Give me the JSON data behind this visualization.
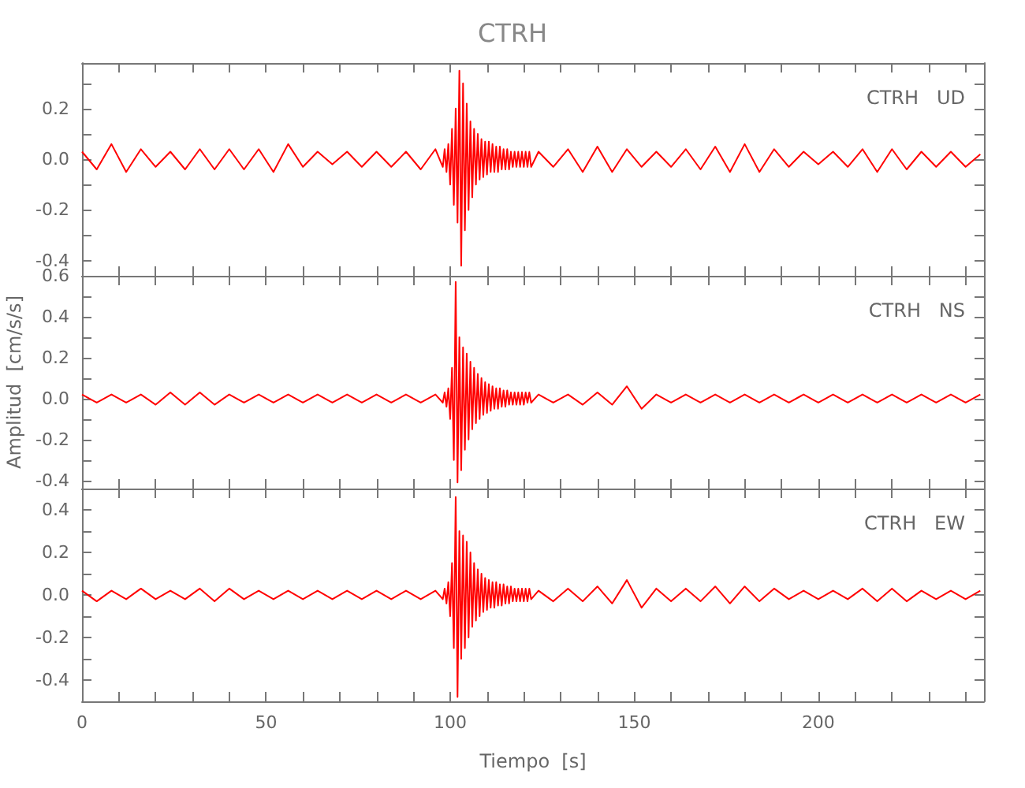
{
  "chart_data": [
    {
      "type": "line",
      "title": "CTRH",
      "annotations": [
        "CTRH   UD"
      ],
      "tick_labels": "y",
      "xlim": [
        0,
        245
      ],
      "xticks": [
        0,
        {
          "value": 10,
          "label": null
        },
        {
          "value": 20,
          "label": null
        },
        {
          "value": 30,
          "label": null
        },
        {
          "value": 40,
          "label": null
        },
        50,
        {
          "value": 60,
          "label": null
        },
        {
          "value": 70,
          "label": null
        },
        {
          "value": 80,
          "label": null
        },
        {
          "value": 90,
          "label": null
        },
        100,
        {
          "value": 110,
          "label": null
        },
        {
          "value": 120,
          "label": null
        },
        {
          "value": 130,
          "label": null
        },
        {
          "value": 140,
          "label": null
        },
        150,
        {
          "value": 160,
          "label": null
        },
        {
          "value": 170,
          "label": null
        },
        {
          "value": 180,
          "label": null
        },
        {
          "value": 190,
          "label": null
        },
        200,
        {
          "value": 210,
          "label": null
        },
        {
          "value": 220,
          "label": null
        },
        {
          "value": 230,
          "label": null
        },
        {
          "value": 240,
          "label": null
        }
      ],
      "ylim": [
        -0.46,
        0.38
      ],
      "yticks": [
        -0.4,
        {
          "value": -0.3,
          "label": null
        },
        -0.2,
        {
          "value": -0.1,
          "label": null
        },
        {
          "value": 0,
          "label": "0.0"
        },
        {
          "value": 0.1,
          "label": null
        },
        0.2,
        {
          "value": 0.3,
          "label": null
        }
      ],
      "x": [
        0,
        4,
        8,
        12,
        16,
        20,
        24,
        28,
        32,
        36,
        40,
        44,
        48,
        52,
        56,
        60,
        64,
        68,
        72,
        76,
        80,
        84,
        88,
        92,
        96,
        98,
        98.5,
        99,
        99.5,
        100,
        100.5,
        101,
        101.5,
        102,
        102.5,
        103,
        103.5,
        104,
        104.5,
        105,
        105.5,
        106,
        106.5,
        107,
        107.5,
        108,
        108.5,
        109,
        109.5,
        110,
        110.5,
        111,
        111.5,
        112,
        112.5,
        113,
        113.5,
        114,
        114.5,
        115,
        115.5,
        116,
        116.5,
        117,
        117.5,
        118,
        118.5,
        119,
        119.5,
        120,
        120.5,
        121,
        121.5,
        122,
        124,
        128,
        132,
        136,
        140,
        144,
        148,
        152,
        156,
        160,
        164,
        168,
        172,
        176,
        180,
        184,
        188,
        192,
        196,
        200,
        204,
        208,
        212,
        216,
        220,
        224,
        228,
        232,
        236,
        240,
        244
      ],
      "series": [
        {
          "color": "#ff0000",
          "values": [
            0.03,
            -0.04,
            0.06,
            -0.05,
            0.04,
            -0.03,
            0.03,
            -0.04,
            0.04,
            -0.04,
            0.04,
            -0.04,
            0.04,
            -0.05,
            0.06,
            -0.03,
            0.03,
            -0.02,
            0.03,
            -0.03,
            0.03,
            -0.03,
            0.03,
            -0.04,
            0.04,
            -0.03,
            0.04,
            -0.05,
            0.06,
            -0.1,
            0.12,
            -0.18,
            0.2,
            -0.25,
            0.35,
            -0.42,
            0.3,
            -0.28,
            0.22,
            -0.2,
            0.15,
            -0.15,
            0.12,
            -0.1,
            0.1,
            -0.08,
            0.08,
            -0.07,
            0.07,
            -0.06,
            0.07,
            -0.05,
            0.06,
            -0.05,
            0.05,
            -0.05,
            0.05,
            -0.04,
            0.04,
            -0.04,
            0.04,
            -0.04,
            0.03,
            -0.03,
            0.03,
            -0.03,
            0.03,
            -0.03,
            0.03,
            -0.03,
            0.03,
            -0.03,
            0.03,
            -0.03,
            0.03,
            -0.03,
            0.04,
            -0.05,
            0.05,
            -0.05,
            0.04,
            -0.03,
            0.03,
            -0.03,
            0.04,
            -0.04,
            0.05,
            -0.05,
            0.06,
            -0.05,
            0.04,
            -0.03,
            0.03,
            -0.02,
            0.03,
            -0.03,
            0.04,
            -0.05,
            0.04,
            -0.04,
            0.03,
            -0.03,
            0.03,
            -0.03,
            0.02
          ]
        }
      ]
    },
    {
      "type": "line",
      "ylabel": "Amplitud  [cm/s/s]",
      "annotations": [
        "CTRH   NS"
      ],
      "tick_labels": "y",
      "xlim": [
        0,
        245
      ],
      "xticks": [
        0,
        {
          "value": 10,
          "label": null
        },
        {
          "value": 20,
          "label": null
        },
        {
          "value": 30,
          "label": null
        },
        {
          "value": 40,
          "label": null
        },
        50,
        {
          "value": 60,
          "label": null
        },
        {
          "value": 70,
          "label": null
        },
        {
          "value": 80,
          "label": null
        },
        {
          "value": 90,
          "label": null
        },
        100,
        {
          "value": 110,
          "label": null
        },
        {
          "value": 120,
          "label": null
        },
        {
          "value": 130,
          "label": null
        },
        {
          "value": 140,
          "label": null
        },
        150,
        {
          "value": 160,
          "label": null
        },
        {
          "value": 170,
          "label": null
        },
        {
          "value": 180,
          "label": null
        },
        {
          "value": 190,
          "label": null
        },
        200,
        {
          "value": 210,
          "label": null
        },
        {
          "value": 220,
          "label": null
        },
        {
          "value": 230,
          "label": null
        },
        {
          "value": 240,
          "label": null
        }
      ],
      "ylim": [
        -0.44,
        0.6
      ],
      "yticks": [
        -0.4,
        {
          "value": -0.3,
          "label": null
        },
        -0.2,
        {
          "value": -0.1,
          "label": null
        },
        {
          "value": 0,
          "label": "0.0"
        },
        {
          "value": 0.1,
          "label": null
        },
        0.2,
        {
          "value": 0.3,
          "label": null
        },
        0.4,
        {
          "value": 0.5,
          "label": null
        },
        0.6
      ],
      "x": [
        0,
        4,
        8,
        12,
        16,
        20,
        24,
        28,
        32,
        36,
        40,
        44,
        48,
        52,
        56,
        60,
        64,
        68,
        72,
        76,
        80,
        84,
        88,
        92,
        96,
        98,
        98.5,
        99,
        99.5,
        100,
        100.5,
        101,
        101.5,
        102,
        102.5,
        103,
        103.5,
        104,
        104.5,
        105,
        105.5,
        106,
        106.5,
        107,
        107.5,
        108,
        108.5,
        109,
        109.5,
        110,
        110.5,
        111,
        111.5,
        112,
        112.5,
        113,
        113.5,
        114,
        114.5,
        115,
        115.5,
        116,
        116.5,
        117,
        117.5,
        118,
        118.5,
        119,
        119.5,
        120,
        120.5,
        121,
        121.5,
        122,
        124,
        128,
        132,
        136,
        140,
        144,
        148,
        152,
        156,
        160,
        164,
        168,
        172,
        176,
        180,
        184,
        188,
        192,
        196,
        200,
        204,
        208,
        212,
        216,
        220,
        224,
        228,
        232,
        236,
        240,
        244
      ],
      "series": [
        {
          "color": "#ff0000",
          "values": [
            0.02,
            -0.02,
            0.02,
            -0.02,
            0.02,
            -0.03,
            0.03,
            -0.03,
            0.03,
            -0.03,
            0.02,
            -0.02,
            0.02,
            -0.02,
            0.02,
            -0.02,
            0.02,
            -0.02,
            0.02,
            -0.02,
            0.02,
            -0.02,
            0.02,
            -0.02,
            0.02,
            -0.02,
            0.03,
            -0.04,
            0.05,
            -0.1,
            0.15,
            -0.3,
            0.57,
            -0.41,
            0.3,
            -0.35,
            0.25,
            -0.25,
            0.22,
            -0.2,
            0.18,
            -0.15,
            0.15,
            -0.12,
            0.12,
            -0.1,
            0.1,
            -0.08,
            0.08,
            -0.07,
            0.07,
            -0.06,
            0.06,
            -0.05,
            0.05,
            -0.05,
            0.05,
            -0.04,
            0.04,
            -0.04,
            0.04,
            -0.03,
            0.03,
            -0.03,
            0.03,
            -0.03,
            0.03,
            -0.03,
            0.03,
            -0.03,
            0.03,
            -0.02,
            0.03,
            -0.02,
            0.02,
            -0.02,
            0.02,
            -0.03,
            0.03,
            -0.03,
            0.06,
            -0.05,
            0.02,
            -0.02,
            0.02,
            -0.02,
            0.02,
            -0.02,
            0.02,
            -0.02,
            0.02,
            -0.02,
            0.02,
            -0.02,
            0.02,
            -0.02,
            0.02,
            -0.02,
            0.02,
            -0.02,
            0.02,
            -0.02,
            0.02,
            -0.02,
            0.02
          ]
        }
      ]
    },
    {
      "type": "line",
      "xlabel": "Tiempo  [s]",
      "annotations": [
        "CTRH   EW"
      ],
      "xlim": [
        0,
        245
      ],
      "xticks": [
        0,
        {
          "value": 10,
          "label": null
        },
        {
          "value": 20,
          "label": null
        },
        {
          "value": 30,
          "label": null
        },
        {
          "value": 40,
          "label": null
        },
        50,
        {
          "value": 60,
          "label": null
        },
        {
          "value": 70,
          "label": null
        },
        {
          "value": 80,
          "label": null
        },
        {
          "value": 90,
          "label": null
        },
        100,
        {
          "value": 110,
          "label": null
        },
        {
          "value": 120,
          "label": null
        },
        {
          "value": 130,
          "label": null
        },
        {
          "value": 140,
          "label": null
        },
        150,
        {
          "value": 160,
          "label": null
        },
        {
          "value": 170,
          "label": null
        },
        {
          "value": 180,
          "label": null
        },
        {
          "value": 190,
          "label": null
        },
        200,
        {
          "value": 210,
          "label": null
        },
        {
          "value": 220,
          "label": null
        },
        {
          "value": 230,
          "label": null
        },
        {
          "value": 240,
          "label": null
        }
      ],
      "ylim": [
        -0.5,
        0.5
      ],
      "yticks": [
        -0.4,
        {
          "value": -0.3,
          "label": null
        },
        -0.2,
        {
          "value": -0.1,
          "label": null
        },
        {
          "value": 0,
          "label": "0.0"
        },
        {
          "value": 0.1,
          "label": null
        },
        0.2,
        {
          "value": 0.3,
          "label": null
        },
        0.4
      ],
      "x": [
        0,
        4,
        8,
        12,
        16,
        20,
        24,
        28,
        32,
        36,
        40,
        44,
        48,
        52,
        56,
        60,
        64,
        68,
        72,
        76,
        80,
        84,
        88,
        92,
        96,
        98,
        98.5,
        99,
        99.5,
        100,
        100.5,
        101,
        101.5,
        102,
        102.5,
        103,
        103.5,
        104,
        104.5,
        105,
        105.5,
        106,
        106.5,
        107,
        107.5,
        108,
        108.5,
        109,
        109.5,
        110,
        110.5,
        111,
        111.5,
        112,
        112.5,
        113,
        113.5,
        114,
        114.5,
        115,
        115.5,
        116,
        116.5,
        117,
        117.5,
        118,
        118.5,
        119,
        119.5,
        120,
        120.5,
        121,
        121.5,
        122,
        124,
        128,
        132,
        136,
        140,
        144,
        148,
        152,
        156,
        160,
        164,
        168,
        172,
        176,
        180,
        184,
        188,
        192,
        196,
        200,
        204,
        208,
        212,
        216,
        220,
        224,
        228,
        232,
        236,
        240,
        244
      ],
      "series": [
        {
          "color": "#ff0000",
          "values": [
            0.02,
            -0.03,
            0.02,
            -0.02,
            0.03,
            -0.02,
            0.02,
            -0.02,
            0.03,
            -0.03,
            0.03,
            -0.02,
            0.02,
            -0.02,
            0.02,
            -0.02,
            0.02,
            -0.02,
            0.02,
            -0.02,
            0.02,
            -0.02,
            0.02,
            -0.02,
            0.02,
            -0.02,
            0.03,
            -0.04,
            0.06,
            -0.1,
            0.15,
            -0.25,
            0.46,
            -0.48,
            0.3,
            -0.3,
            0.28,
            -0.25,
            0.25,
            -0.2,
            0.2,
            -0.15,
            0.15,
            -0.12,
            0.12,
            -0.1,
            0.1,
            -0.08,
            0.08,
            -0.07,
            0.07,
            -0.06,
            0.06,
            -0.06,
            0.06,
            -0.05,
            0.05,
            -0.05,
            0.05,
            -0.04,
            0.04,
            -0.04,
            0.04,
            -0.03,
            0.03,
            -0.03,
            0.03,
            -0.03,
            0.03,
            -0.03,
            0.03,
            -0.03,
            0.03,
            -0.02,
            0.02,
            -0.03,
            0.03,
            -0.03,
            0.04,
            -0.04,
            0.07,
            -0.06,
            0.03,
            -0.03,
            0.03,
            -0.03,
            0.04,
            -0.04,
            0.04,
            -0.03,
            0.03,
            -0.02,
            0.02,
            -0.02,
            0.02,
            -0.02,
            0.03,
            -0.03,
            0.03,
            -0.03,
            0.02,
            -0.02,
            0.02,
            -0.02,
            0.02
          ]
        }
      ]
    }
  ]
}
